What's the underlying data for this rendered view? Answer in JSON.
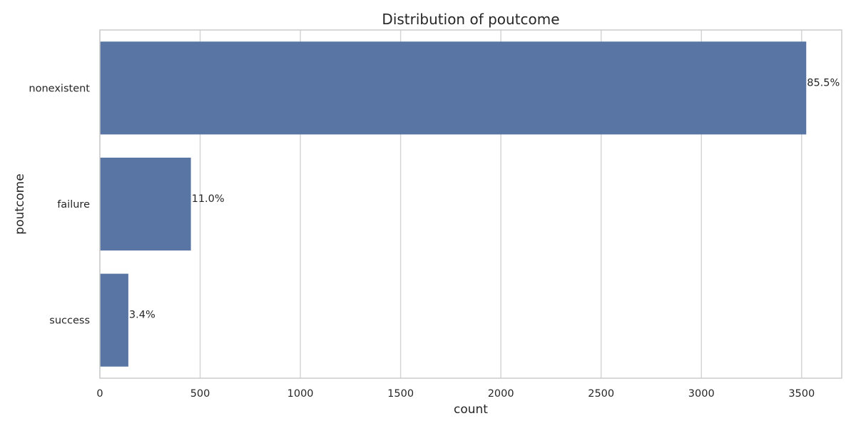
{
  "chart_data": {
    "type": "bar",
    "orientation": "horizontal",
    "title": "Distribution of poutcome",
    "xlabel": "count",
    "ylabel": "poutcome",
    "categories": [
      "nonexistent",
      "failure",
      "success"
    ],
    "values": [
      3523,
      454,
      142
    ],
    "data_labels": [
      "85.5%",
      "11.0%",
      "3.4%"
    ],
    "xlim": [
      0,
      3700
    ],
    "xticks": [
      0,
      500,
      1000,
      1500,
      2000,
      2500,
      3000,
      3500
    ],
    "grid": true,
    "bar_color": "#5975a4",
    "grid_color": "#d5d5d5",
    "frame_color": "#cccccc"
  }
}
